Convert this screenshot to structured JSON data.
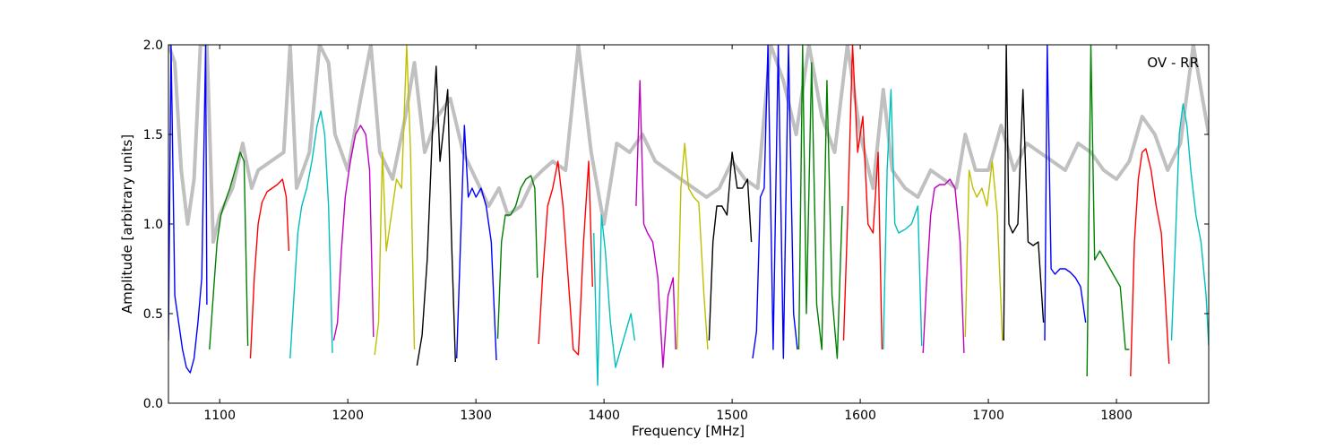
{
  "chart_data": {
    "type": "line",
    "title": "",
    "annotation": "OV - RR",
    "xlabel": "Frequency [MHz]",
    "ylabel": "Amplitude [arbitrary units]",
    "xlim": [
      1060,
      1872
    ],
    "ylim": [
      0.0,
      2.0
    ],
    "xticks": [
      1100,
      1200,
      1300,
      1400,
      1500,
      1600,
      1700,
      1800
    ],
    "yticks": [
      0.0,
      0.5,
      1.0,
      1.5,
      2.0
    ],
    "xtick_labels": [
      "1100",
      "1200",
      "1300",
      "1400",
      "1500",
      "1600",
      "1700",
      "1800"
    ],
    "ytick_labels": [
      "0.0",
      "0.5",
      "1.0",
      "1.5",
      "2.0"
    ],
    "grid": false,
    "background_series": {
      "color": "#c0c0c0",
      "description": "envelope of all subbands",
      "x": [
        1060,
        1065,
        1070,
        1075,
        1080,
        1085,
        1090,
        1095,
        1100,
        1110,
        1118,
        1125,
        1130,
        1140,
        1150,
        1155,
        1160,
        1170,
        1178,
        1185,
        1190,
        1200,
        1210,
        1218,
        1225,
        1235,
        1245,
        1252,
        1260,
        1270,
        1280,
        1290,
        1300,
        1310,
        1318,
        1325,
        1335,
        1345,
        1352,
        1360,
        1370,
        1380,
        1390,
        1400,
        1410,
        1420,
        1430,
        1440,
        1450,
        1460,
        1470,
        1480,
        1490,
        1500,
        1510,
        1520,
        1530,
        1540,
        1550,
        1560,
        1570,
        1580,
        1590,
        1600,
        1610,
        1618,
        1625,
        1635,
        1645,
        1655,
        1665,
        1675,
        1682,
        1690,
        1700,
        1710,
        1720,
        1730,
        1740,
        1750,
        1760,
        1770,
        1780,
        1790,
        1800,
        1810,
        1820,
        1830,
        1840,
        1850,
        1860,
        1872
      ],
      "y": [
        2.0,
        1.9,
        1.3,
        1.0,
        1.25,
        2.0,
        2.0,
        0.9,
        1.05,
        1.2,
        1.45,
        1.2,
        1.3,
        1.35,
        1.4,
        2.0,
        1.2,
        1.4,
        2.0,
        1.9,
        1.5,
        1.3,
        1.7,
        2.0,
        1.4,
        1.25,
        1.6,
        1.9,
        1.4,
        1.6,
        1.7,
        1.4,
        1.25,
        1.1,
        1.2,
        1.05,
        1.1,
        1.25,
        1.3,
        1.35,
        1.3,
        2.0,
        1.4,
        1.0,
        1.45,
        1.4,
        1.5,
        1.35,
        1.3,
        1.25,
        1.2,
        1.15,
        1.2,
        1.35,
        1.25,
        1.2,
        2.0,
        1.8,
        1.5,
        2.0,
        1.6,
        1.4,
        2.0,
        1.5,
        1.2,
        1.75,
        1.3,
        1.2,
        1.15,
        1.3,
        1.25,
        1.2,
        1.5,
        1.3,
        1.3,
        1.55,
        1.3,
        1.45,
        1.4,
        1.35,
        1.3,
        1.45,
        1.4,
        1.3,
        1.25,
        1.35,
        1.6,
        1.5,
        1.3,
        1.45,
        2.0,
        1.5
      ]
    },
    "series": [
      {
        "color": "#0000ff",
        "x": [
          1060,
          1062,
          1065,
          1068,
          1071,
          1074,
          1077,
          1080,
          1083,
          1086,
          1089,
          1090
        ],
        "y": [
          0.35,
          2.0,
          0.6,
          0.45,
          0.3,
          0.2,
          0.17,
          0.25,
          0.45,
          0.7,
          2.0,
          0.55
        ]
      },
      {
        "color": "#008000",
        "x": [
          1092,
          1095,
          1098,
          1101,
          1104,
          1108,
          1112,
          1116,
          1119,
          1122
        ],
        "y": [
          0.3,
          0.6,
          0.9,
          1.05,
          1.12,
          1.2,
          1.3,
          1.4,
          1.35,
          0.32
        ]
      },
      {
        "color": "#ff0000",
        "x": [
          1124,
          1127,
          1130,
          1133,
          1137,
          1141,
          1145,
          1149,
          1152,
          1154
        ],
        "y": [
          0.25,
          0.7,
          1.0,
          1.12,
          1.18,
          1.2,
          1.22,
          1.25,
          1.15,
          0.85
        ]
      },
      {
        "color": "#00bfbf",
        "x": [
          1155,
          1158,
          1161,
          1164,
          1168,
          1172,
          1176,
          1179,
          1182,
          1185,
          1188
        ],
        "y": [
          0.25,
          0.6,
          0.95,
          1.1,
          1.2,
          1.35,
          1.55,
          1.63,
          1.5,
          1.1,
          0.28
        ]
      },
      {
        "color": "#bf00bf",
        "x": [
          1189,
          1192,
          1195,
          1198,
          1202,
          1206,
          1210,
          1214,
          1217,
          1220
        ],
        "y": [
          0.35,
          0.45,
          0.85,
          1.15,
          1.35,
          1.5,
          1.55,
          1.5,
          1.3,
          0.37
        ]
      },
      {
        "color": "#bfbf00",
        "x": [
          1221,
          1224,
          1227,
          1230,
          1234,
          1238,
          1242,
          1246,
          1249,
          1252
        ],
        "y": [
          0.27,
          0.45,
          1.4,
          0.85,
          1.05,
          1.25,
          1.2,
          2.0,
          1.4,
          0.3
        ]
      },
      {
        "color": "#000000",
        "x": [
          1254,
          1258,
          1262,
          1266,
          1269,
          1272,
          1275,
          1278,
          1281,
          1284
        ],
        "y": [
          0.21,
          0.38,
          0.8,
          1.5,
          1.88,
          1.35,
          1.55,
          1.75,
          0.9,
          0.23
        ]
      },
      {
        "color": "#0000ff",
        "x": [
          1285,
          1288,
          1291,
          1294,
          1297,
          1300,
          1304,
          1308,
          1312,
          1316
        ],
        "y": [
          0.25,
          0.9,
          1.55,
          1.15,
          1.2,
          1.15,
          1.2,
          1.1,
          0.9,
          0.24
        ]
      },
      {
        "color": "#008000",
        "x": [
          1317,
          1320,
          1323,
          1327,
          1331,
          1335,
          1339,
          1343,
          1346,
          1348
        ],
        "y": [
          0.36,
          0.9,
          1.05,
          1.05,
          1.1,
          1.2,
          1.25,
          1.27,
          1.2,
          0.7
        ]
      },
      {
        "color": "#ff0000",
        "x": [
          1349,
          1352,
          1356,
          1360,
          1364,
          1368,
          1372,
          1376,
          1380,
          1384,
          1388,
          1391
        ],
        "y": [
          0.33,
          0.7,
          1.1,
          1.2,
          1.35,
          1.1,
          0.7,
          0.3,
          0.27,
          0.9,
          1.35,
          0.65
        ]
      },
      {
        "color": "#00bfbf",
        "x": [
          1392,
          1395,
          1398,
          1401,
          1405,
          1409,
          1413,
          1417,
          1421,
          1424
        ],
        "y": [
          0.95,
          0.1,
          1.05,
          0.85,
          0.45,
          0.2,
          0.3,
          0.4,
          0.5,
          0.35
        ]
      },
      {
        "color": "#bf00bf",
        "x": [
          1425,
          1428,
          1431,
          1434,
          1438,
          1442,
          1446,
          1450,
          1454,
          1456
        ],
        "y": [
          1.1,
          1.8,
          1.0,
          0.95,
          0.9,
          0.7,
          0.2,
          0.6,
          0.7,
          0.3
        ]
      },
      {
        "color": "#bfbf00",
        "x": [
          1457,
          1460,
          1463,
          1466,
          1470,
          1474,
          1478,
          1481
        ],
        "y": [
          0.3,
          1.2,
          1.45,
          1.2,
          1.15,
          1.12,
          0.6,
          0.3
        ]
      },
      {
        "color": "#000000",
        "x": [
          1482,
          1485,
          1488,
          1492,
          1496,
          1500,
          1504,
          1508,
          1512,
          1515
        ],
        "y": [
          0.35,
          0.9,
          1.1,
          1.1,
          1.05,
          1.4,
          1.2,
          1.2,
          1.25,
          0.9
        ]
      },
      {
        "color": "#0000ff",
        "x": [
          1516,
          1519,
          1522,
          1525,
          1528,
          1532,
          1536,
          1540,
          1544,
          1548,
          1551
        ],
        "y": [
          0.25,
          0.4,
          1.15,
          1.2,
          2.0,
          0.3,
          2.0,
          0.25,
          2.0,
          0.5,
          0.3
        ]
      },
      {
        "color": "#008000",
        "x": [
          1552,
          1555,
          1558,
          1562,
          1566,
          1570,
          1574,
          1578,
          1582,
          1586
        ],
        "y": [
          0.3,
          2.0,
          0.5,
          1.9,
          0.55,
          0.3,
          1.8,
          0.6,
          0.25,
          1.1
        ]
      },
      {
        "color": "#ff0000",
        "x": [
          1587,
          1590,
          1594,
          1598,
          1602,
          1606,
          1610,
          1614,
          1617
        ],
        "y": [
          0.35,
          1.0,
          2.0,
          1.4,
          1.6,
          1.0,
          0.95,
          1.4,
          0.3
        ]
      },
      {
        "color": "#00bfbf",
        "x": [
          1618,
          1621,
          1624,
          1627,
          1630,
          1635,
          1640,
          1645,
          1648
        ],
        "y": [
          0.3,
          1.3,
          1.75,
          1.0,
          0.95,
          0.97,
          1.0,
          1.1,
          0.32
        ]
      },
      {
        "color": "#bf00bf",
        "x": [
          1649,
          1652,
          1655,
          1658,
          1662,
          1666,
          1670,
          1674,
          1678,
          1681
        ],
        "y": [
          0.28,
          0.7,
          1.05,
          1.2,
          1.22,
          1.22,
          1.25,
          1.2,
          0.9,
          0.28
        ]
      },
      {
        "color": "#bfbf00",
        "x": [
          1682,
          1685,
          1688,
          1691,
          1695,
          1699,
          1703,
          1707,
          1711
        ],
        "y": [
          0.37,
          1.3,
          1.2,
          1.15,
          1.2,
          1.1,
          1.35,
          1.05,
          0.35
        ]
      },
      {
        "color": "#000000",
        "x": [
          1712,
          1714,
          1716,
          1719,
          1723,
          1727,
          1731,
          1735,
          1739,
          1743
        ],
        "y": [
          0.35,
          2.0,
          1.0,
          0.95,
          1.0,
          1.75,
          0.9,
          0.88,
          0.9,
          0.45
        ]
      },
      {
        "color": "#0000ff",
        "x": [
          1744,
          1746,
          1749,
          1752,
          1756,
          1760,
          1764,
          1768,
          1772,
          1776
        ],
        "y": [
          0.35,
          2.0,
          0.75,
          0.72,
          0.75,
          0.75,
          0.73,
          0.7,
          0.65,
          0.45
        ]
      },
      {
        "color": "#008000",
        "x": [
          1777,
          1780,
          1783,
          1787,
          1791,
          1795,
          1799,
          1803,
          1807,
          1810
        ],
        "y": [
          0.15,
          2.0,
          0.8,
          0.85,
          0.8,
          0.75,
          0.7,
          0.65,
          0.3,
          0.3
        ]
      },
      {
        "color": "#ff0000",
        "x": [
          1811,
          1814,
          1817,
          1820,
          1823,
          1827,
          1831,
          1835,
          1838,
          1841
        ],
        "y": [
          0.15,
          0.9,
          1.25,
          1.4,
          1.42,
          1.3,
          1.1,
          0.95,
          0.6,
          0.22
        ]
      },
      {
        "color": "#00bfbf",
        "x": [
          1843,
          1846,
          1849,
          1852,
          1855,
          1858,
          1862,
          1866,
          1870,
          1872
        ],
        "y": [
          0.35,
          0.9,
          1.5,
          1.67,
          1.55,
          1.3,
          1.05,
          0.9,
          0.6,
          0.32
        ]
      }
    ]
  }
}
